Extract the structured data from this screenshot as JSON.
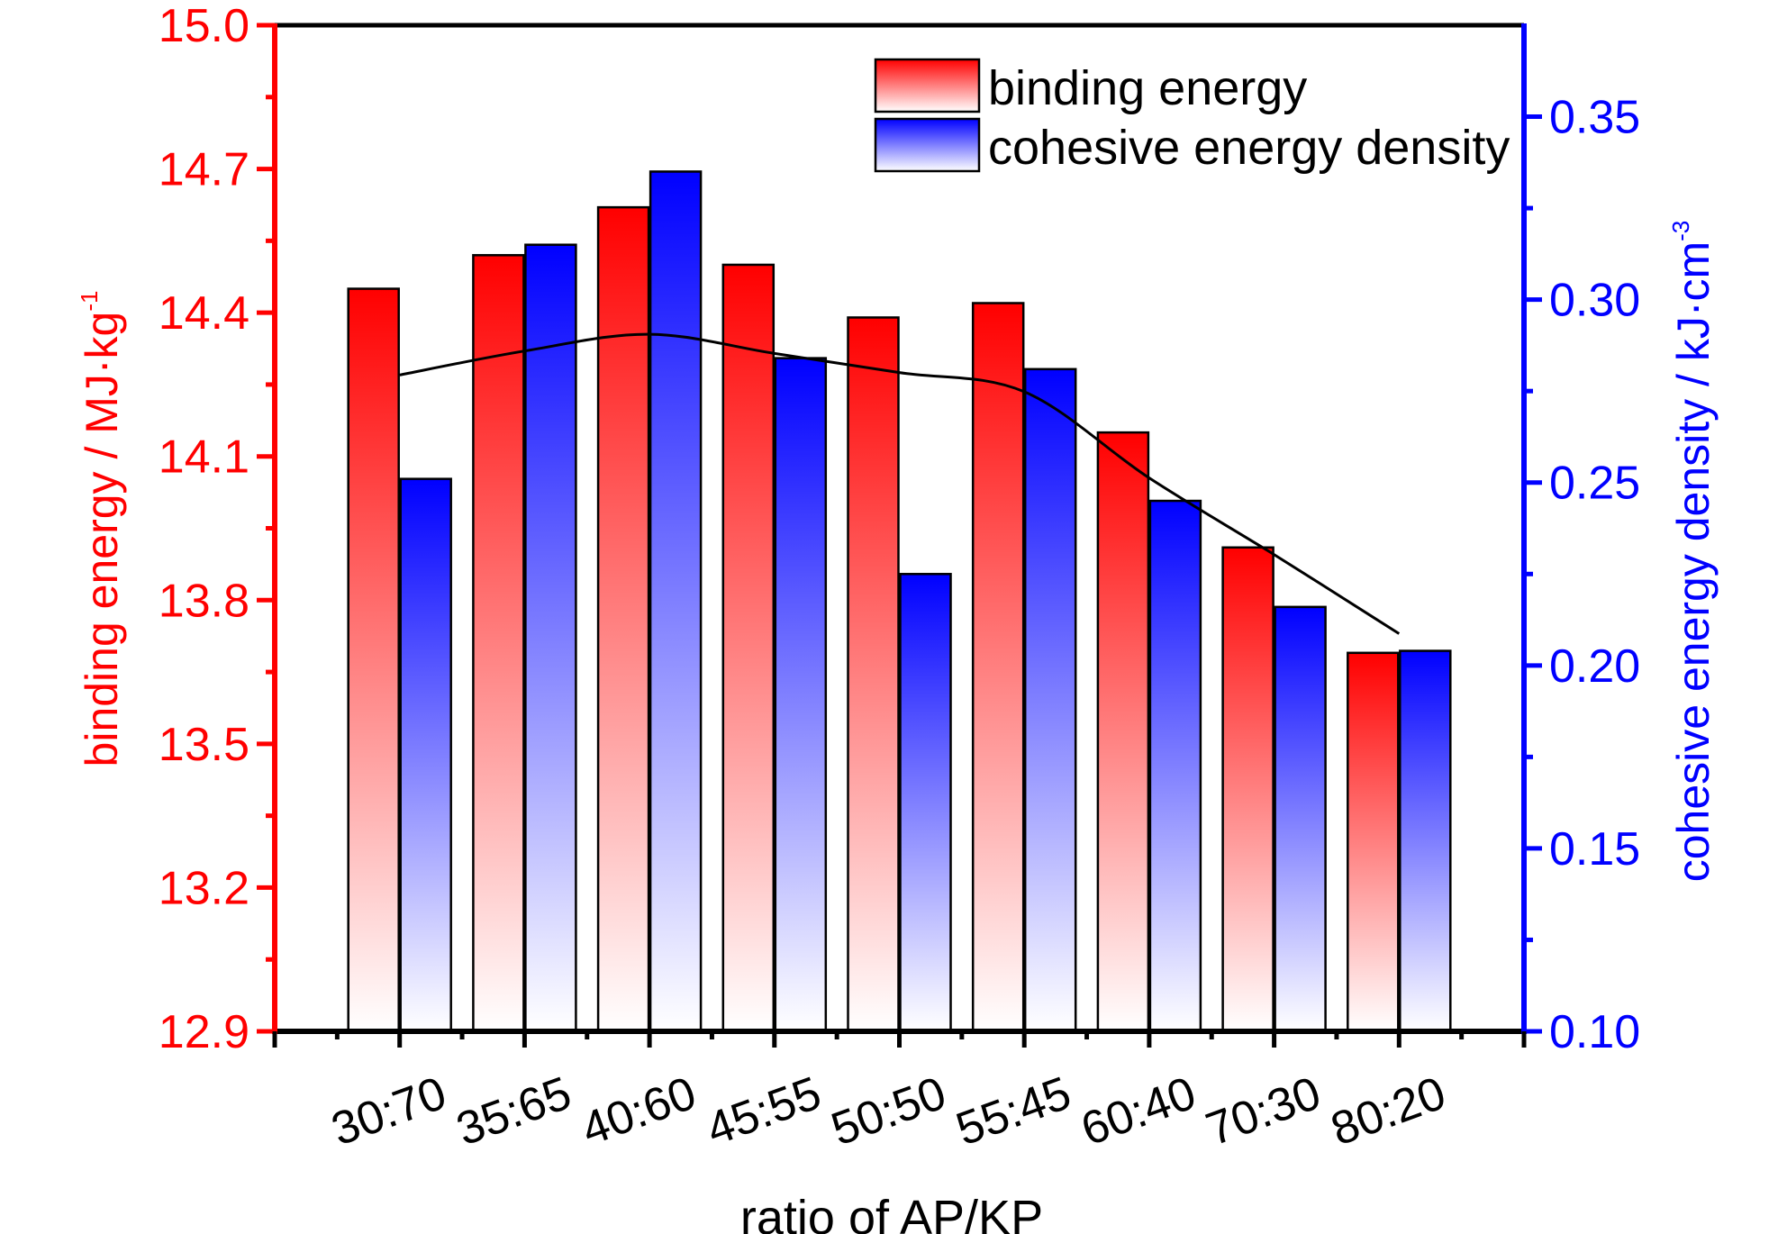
{
  "chart_data": {
    "type": "bar",
    "categories": [
      "30:70",
      "35:65",
      "40:60",
      "45:55",
      "50:50",
      "55:45",
      "60:40",
      "70:30",
      "80:20"
    ],
    "series": [
      {
        "name": "binding energy",
        "axis": "left",
        "values": [
          14.45,
          14.52,
          14.62,
          14.5,
          14.39,
          14.42,
          14.15,
          13.91,
          13.69
        ],
        "color": "#ff0000"
      },
      {
        "name": "cohesive energy density",
        "axis": "right",
        "values": [
          0.251,
          0.315,
          0.335,
          0.284,
          0.225,
          0.281,
          0.245,
          0.216,
          0.204
        ],
        "color": "#0000ff"
      }
    ],
    "trend_line": {
      "color": "#000000",
      "values": [
        14.27,
        14.32,
        14.355,
        14.315,
        14.275,
        14.235,
        14.055,
        13.895,
        13.73
      ]
    },
    "xlabel": "ratio of AP/KP",
    "ylabel_left": {
      "main": "binding energy / MJ·kg",
      "sup": "-1"
    },
    "ylabel_right": {
      "main": "cohesive energy density / kJ·cm",
      "sup": "-3"
    },
    "ylim_left": [
      12.9,
      15.0
    ],
    "ylim_right": [
      0.1,
      0.375
    ],
    "yticks_left": [
      "12.9",
      "13.2",
      "13.5",
      "13.8",
      "14.1",
      "14.4",
      "14.7",
      "15.0"
    ],
    "yticks_right": [
      "0.10",
      "0.15",
      "0.20",
      "0.25",
      "0.30",
      "0.35"
    ],
    "left_axis_color": "#ff0000",
    "right_axis_color": "#0000ff",
    "legend_position": "top-right",
    "grid": false
  }
}
